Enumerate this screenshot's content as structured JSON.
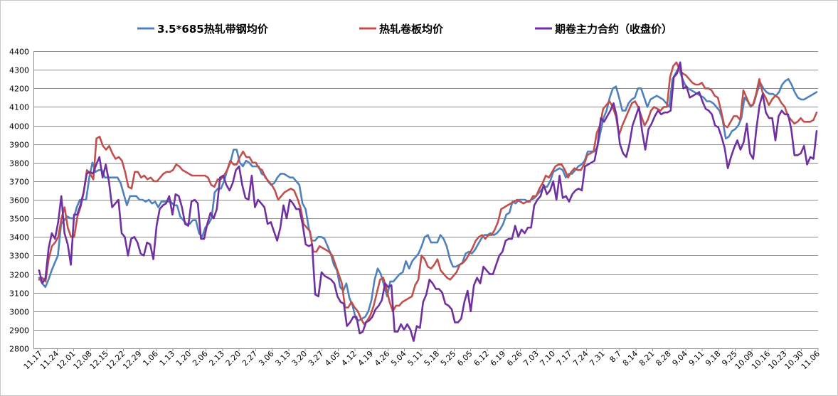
{
  "chart_data": {
    "type": "line",
    "title": "",
    "xlabel": "",
    "ylabel": "",
    "ylim": [
      2800,
      4400
    ],
    "yticks": [
      2800,
      2900,
      3000,
      3100,
      3200,
      3300,
      3400,
      3500,
      3600,
      3700,
      3800,
      3900,
      4000,
      4100,
      4200,
      4300,
      4400
    ],
    "grid": true,
    "legend": "top",
    "x_tick_labels": [
      "11.17",
      "11.24",
      "12.01",
      "12.08",
      "12.15",
      "12.22",
      "12.29",
      "1.06",
      "1.13",
      "1.20",
      "2.06",
      "2.13",
      "2.20",
      "2.27",
      "3.06",
      "3.13",
      "3.20",
      "3.27",
      "4.05",
      "4.12",
      "4.19",
      "4.26",
      "5.04",
      "5.11",
      "5.18",
      "5.25",
      "6.05",
      "6.12",
      "6.19",
      "6.26",
      "7.03",
      "7.10",
      "7.17",
      "7.24",
      "7.31",
      "8.7",
      "8.14",
      "8.21",
      "8.28",
      "9.04",
      "9.11",
      "9.18",
      "9.25",
      "10.09",
      "10.16",
      "10.23",
      "10.30",
      "11.06"
    ],
    "series": [
      {
        "name": "3.5*685热轧带钢均价",
        "color": "#4f81bd",
        "values": [
          3180,
          3150,
          3130,
          3170,
          3220,
          3260,
          3300,
          3470,
          3490,
          3510,
          3500,
          3500,
          3560,
          3600,
          3600,
          3600,
          3720,
          3800,
          3750,
          3760,
          3760,
          3720,
          3720,
          3720,
          3720,
          3720,
          3690,
          3630,
          3570,
          3620,
          3620,
          3620,
          3600,
          3600,
          3590,
          3600,
          3580,
          3590,
          3560,
          3590,
          3590,
          3590,
          3590,
          3570,
          3570,
          3510,
          3490,
          3470,
          3470,
          3490,
          3490,
          3420,
          3400,
          3450,
          3470,
          3500,
          3640,
          3660,
          3660,
          3700,
          3760,
          3800,
          3870,
          3870,
          3800,
          3780,
          3810,
          3800,
          3780,
          3780,
          3780,
          3740,
          3730,
          3700,
          3680,
          3690,
          3720,
          3740,
          3740,
          3730,
          3720,
          3720,
          3700,
          3680,
          3580,
          3550,
          3450,
          3380,
          3380,
          3400,
          3400,
          3390,
          3350,
          3310,
          3250,
          3220,
          3130,
          3110,
          3150,
          3070,
          3030,
          2960,
          2950,
          2960,
          2970,
          3000,
          3060,
          3170,
          3230,
          3200,
          3140,
          3080,
          3160,
          3160,
          3180,
          3200,
          3210,
          3270,
          3230,
          3270,
          3290,
          3310,
          3350,
          3400,
          3410,
          3370,
          3370,
          3370,
          3410,
          3390,
          3350,
          3280,
          3240,
          3240,
          3250,
          3260,
          3310,
          3320,
          3310,
          3330,
          3360,
          3390,
          3410,
          3410,
          3420,
          3410,
          3420,
          3440,
          3470,
          3520,
          3530,
          3590,
          3580,
          3600,
          3600,
          3600,
          3590,
          3600,
          3610,
          3630,
          3650,
          3670,
          3670,
          3700,
          3750,
          3760,
          3770,
          3760,
          3720,
          3740,
          3740,
          3760,
          3780,
          3790,
          3810,
          3860,
          3860,
          3860,
          3880,
          3960,
          4040,
          4080,
          4150,
          4200,
          4210,
          4150,
          4080,
          4080,
          4120,
          4140,
          4150,
          4200,
          4200,
          4150,
          4100,
          4140,
          4150,
          4160,
          4150,
          4140,
          4120,
          4100,
          4250,
          4280,
          4310,
          4260,
          4220,
          4200,
          4190,
          4180,
          4170,
          4160,
          4150,
          4130,
          4130,
          4120,
          4100,
          4080,
          4030,
          3930,
          3940,
          3970,
          3980,
          4000,
          4040,
          4150,
          4130,
          4100,
          4120,
          4180,
          4230,
          4200,
          4180,
          4170,
          4170,
          4160,
          4180,
          4220,
          4240,
          4250,
          4220,
          4180,
          4150,
          4140,
          4140,
          4150,
          4160,
          4170,
          4180
        ],
        "x_end": 1
      },
      {
        "name": "热轧卷板均价",
        "color": "#c0504d",
        "values": [
          3170,
          3180,
          3160,
          3280,
          3350,
          3370,
          3400,
          3500,
          3560,
          3450,
          3400,
          3400,
          3510,
          3560,
          3640,
          3760,
          3740,
          3710,
          3930,
          3940,
          3890,
          3870,
          3890,
          3850,
          3820,
          3830,
          3810,
          3750,
          3670,
          3660,
          3750,
          3750,
          3720,
          3730,
          3710,
          3720,
          3700,
          3700,
          3720,
          3740,
          3750,
          3750,
          3760,
          3790,
          3780,
          3760,
          3750,
          3740,
          3730,
          3730,
          3730,
          3730,
          3730,
          3720,
          3680,
          3670,
          3710,
          3710,
          3730,
          3760,
          3810,
          3790,
          3790,
          3830,
          3860,
          3830,
          3830,
          3800,
          3800,
          3770,
          3760,
          3720,
          3700,
          3680,
          3650,
          3600,
          3620,
          3640,
          3650,
          3660,
          3650,
          3610,
          3560,
          3470,
          3450,
          3430,
          3320,
          3320,
          3350,
          3340,
          3330,
          3320,
          3300,
          3250,
          3200,
          3150,
          3020,
          3020,
          3050,
          3020,
          3000,
          2960,
          2930,
          2950,
          2980,
          3030,
          3100,
          3170,
          3180,
          3120,
          3050,
          3000,
          3030,
          3030,
          3050,
          3060,
          3070,
          3080,
          3140,
          3170,
          3300,
          3280,
          3240,
          3230,
          3250,
          3280,
          3220,
          3200,
          3180,
          3170,
          3190,
          3210,
          3250,
          3260,
          3280,
          3310,
          3340,
          3380,
          3400,
          3410,
          3390,
          3410,
          3410,
          3440,
          3480,
          3550,
          3560,
          3570,
          3580,
          3590,
          3600,
          3590,
          3580,
          3590,
          3590,
          3620,
          3620,
          3660,
          3690,
          3730,
          3720,
          3750,
          3780,
          3790,
          3790,
          3760,
          3720,
          3750,
          3770,
          3760,
          3760,
          3790,
          3840,
          3850,
          3860,
          3960,
          4000,
          4090,
          4110,
          4130,
          4100,
          4050,
          3950,
          4000,
          4040,
          4080,
          4120,
          4130,
          4100,
          4050,
          4000,
          4030,
          4080,
          4100,
          4090,
          4080,
          4100,
          4100,
          4260,
          4320,
          4340,
          4300,
          4280,
          4270,
          4250,
          4230,
          4220,
          4220,
          4230,
          4200,
          4200,
          4190,
          4160,
          4150,
          4080,
          4000,
          3990,
          4020,
          4050,
          4050,
          4030,
          4190,
          4150,
          4110,
          4110,
          4170,
          4250,
          4180,
          4150,
          4110,
          4140,
          4160,
          4150,
          4120,
          4100,
          4050,
          4030,
          4010,
          4020,
          4040,
          4020,
          4020,
          4020,
          4030,
          4070
        ],
        "x_end": 1
      },
      {
        "name": "期卷主力合约（收盘价）",
        "color": "#7030a0",
        "values": [
          3220,
          3150,
          3180,
          3340,
          3420,
          3390,
          3480,
          3620,
          3420,
          3360,
          3250,
          3520,
          3520,
          3570,
          3640,
          3740,
          3750,
          3740,
          3790,
          3830,
          3720,
          3790,
          3700,
          3560,
          3580,
          3600,
          3420,
          3400,
          3300,
          3390,
          3400,
          3370,
          3310,
          3300,
          3370,
          3360,
          3280,
          3460,
          3550,
          3570,
          3580,
          3620,
          3520,
          3630,
          3620,
          3560,
          3470,
          3460,
          3590,
          3600,
          3580,
          3390,
          3390,
          3470,
          3530,
          3500,
          3550,
          3720,
          3730,
          3680,
          3650,
          3690,
          3760,
          3780,
          3680,
          3610,
          3600,
          3730,
          3560,
          3600,
          3580,
          3560,
          3470,
          3480,
          3430,
          3380,
          3450,
          3570,
          3500,
          3600,
          3580,
          3550,
          3550,
          3470,
          3360,
          3350,
          3360,
          3090,
          3080,
          3210,
          3190,
          3180,
          3170,
          3150,
          3080,
          3050,
          3040,
          2920,
          2940,
          2970,
          2970,
          2880,
          2890,
          2940,
          2950,
          2970,
          3010,
          3030,
          3060,
          3150,
          3130,
          3140,
          2890,
          2890,
          2930,
          2900,
          2930,
          2900,
          2840,
          2920,
          2910,
          3050,
          3090,
          3170,
          3150,
          3120,
          3120,
          3100,
          3040,
          3030,
          3010,
          2940,
          2940,
          2960,
          3050,
          3110,
          3000,
          3140,
          3180,
          3150,
          3240,
          3220,
          3200,
          3200,
          3250,
          3300,
          3320,
          3380,
          3390,
          3390,
          3460,
          3400,
          3440,
          3420,
          3450,
          3450,
          3570,
          3600,
          3620,
          3680,
          3630,
          3650,
          3700,
          3600,
          3730,
          3610,
          3620,
          3590,
          3630,
          3650,
          3660,
          3650,
          3780,
          3790,
          3800,
          3810,
          3900,
          4040,
          4020,
          4050,
          4080,
          4120,
          4050,
          3900,
          3850,
          3830,
          3900,
          4000,
          4050,
          4100,
          3970,
          3870,
          3980,
          4010,
          4050,
          4080,
          4060,
          4070,
          4070,
          4080,
          4260,
          4280,
          4340,
          4200,
          4210,
          4150,
          4160,
          4170,
          4180,
          4130,
          4090,
          4080,
          4060,
          4000,
          3990,
          3940,
          3880,
          3770,
          3830,
          3880,
          3920,
          3870,
          3910,
          4010,
          3850,
          3820,
          3980,
          4110,
          4170,
          4070,
          4040,
          4040,
          3920,
          4050,
          4080,
          4060,
          4060,
          3980,
          3840,
          3840,
          3850,
          3890,
          3790,
          3830,
          3820,
          3970
        ],
        "x_end": 1
      }
    ]
  }
}
